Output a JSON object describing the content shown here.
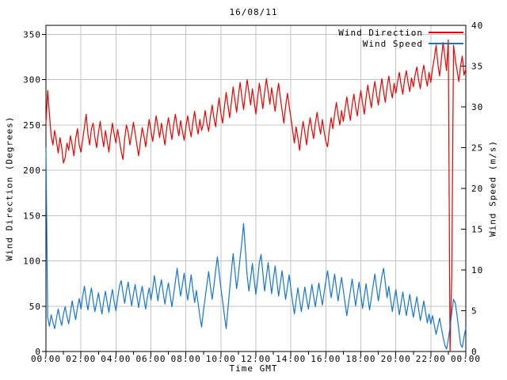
{
  "title": "16/08/11",
  "colors": {
    "background": "#ffffff",
    "grid": "#c4c4c4",
    "frame": "#000000",
    "wind_direction": "#e60000",
    "wind_speed": "#1874cd"
  },
  "axes": {
    "x_label": "Time GMT",
    "y_left_label": "Wind Direction (Degrees)",
    "y_right_label": "Wind Speed (m/s)",
    "x_tick_hours": [
      0,
      2,
      4,
      6,
      8,
      10,
      12,
      14,
      16,
      18,
      20,
      22,
      24
    ],
    "x_tick_labels": [
      "00:00",
      "02:00",
      "04:00",
      "06:00",
      "08:00",
      "10:00",
      "12:00",
      "14:00",
      "16:00",
      "18:00",
      "20:00",
      "22:00",
      "00:00"
    ],
    "y_left_ticks": [
      0,
      50,
      100,
      150,
      200,
      250,
      300,
      350
    ],
    "y_right_ticks": [
      0,
      5,
      10,
      15,
      20,
      25,
      30,
      35,
      40
    ],
    "x_range_hours": [
      0,
      24
    ],
    "y_left_range": [
      0,
      360
    ],
    "y_right_range": [
      0,
      40
    ]
  },
  "legend": {
    "entries": [
      {
        "label": "Wind Direction",
        "color": "#e60000"
      },
      {
        "label": "Wind Speed",
        "color": "#1874cd"
      }
    ]
  },
  "chart_data": {
    "type": "line",
    "title": "16/08/11",
    "xlabel": "Time GMT",
    "ylabel_left": "Wind Direction (Degrees)",
    "ylabel_right": "Wind Speed (m/s)",
    "xlim_hours": [
      0,
      24
    ],
    "ylim_left": [
      0,
      360
    ],
    "ylim_right": [
      0,
      40
    ],
    "grid": true,
    "legend_position": "top-right-inside",
    "x_start_hour": 0.0,
    "x_step_hours": 0.1,
    "series": [
      {
        "name": "Wind Direction",
        "axis": "left",
        "units": "degrees",
        "color": "#e60000",
        "values": [
          252,
          288,
          262,
          238,
          228,
          244,
          232,
          219,
          236,
          225,
          208,
          214,
          230,
          222,
          238,
          228,
          216,
          235,
          246,
          228,
          220,
          234,
          248,
          262,
          240,
          228,
          246,
          252,
          236,
          225,
          242,
          254,
          238,
          226,
          244,
          232,
          220,
          238,
          252,
          240,
          230,
          245,
          233,
          221,
          212,
          235,
          250,
          242,
          228,
          240,
          253,
          241,
          228,
          216,
          232,
          247,
          238,
          226,
          242,
          256,
          244,
          232,
          245,
          260,
          248,
          236,
          252,
          240,
          228,
          246,
          258,
          246,
          234,
          250,
          262,
          248,
          238,
          255,
          243,
          233,
          248,
          260,
          247,
          237,
          253,
          265,
          250,
          240,
          256,
          244,
          252,
          266,
          252,
          243,
          259,
          272,
          258,
          248,
          266,
          280,
          263,
          252,
          270,
          286,
          272,
          258,
          275,
          292,
          278,
          264,
          282,
          297,
          281,
          267,
          285,
          300,
          286,
          272,
          290,
          276,
          262,
          280,
          296,
          282,
          268,
          286,
          301,
          287,
          273,
          291,
          278,
          265,
          283,
          296,
          280,
          266,
          252,
          270,
          285,
          271,
          258,
          244,
          230,
          248,
          236,
          222,
          240,
          254,
          242,
          228,
          246,
          258,
          245,
          235,
          252,
          264,
          250,
          240,
          256,
          243,
          232,
          226,
          244,
          258,
          246,
          262,
          275,
          261,
          250,
          266,
          254,
          268,
          281,
          267,
          255,
          272,
          284,
          270,
          260,
          276,
          288,
          274,
          262,
          280,
          294,
          281,
          269,
          286,
          298,
          284,
          272,
          288,
          301,
          287,
          275,
          292,
          304,
          290,
          280,
          296,
          285,
          298,
          308,
          294,
          284,
          300,
          310,
          297,
          287,
          302,
          292,
          305,
          314,
          300,
          290,
          306,
          316,
          303,
          293,
          308,
          297,
          312,
          324,
          338,
          318,
          304,
          322,
          341,
          326,
          310,
          344,
          0,
          85,
          338,
          322,
          310,
          298,
          315,
          326,
          305,
          312
        ]
      },
      {
        "name": "Wind Speed",
        "axis": "right",
        "units": "m/s",
        "color": "#1874cd",
        "values": [
          25.0,
          4.2,
          3.1,
          4.5,
          3.6,
          2.8,
          4.1,
          5.2,
          4.0,
          3.2,
          4.6,
          5.5,
          4.3,
          3.4,
          4.8,
          6.2,
          5.0,
          3.9,
          5.4,
          6.5,
          5.2,
          6.8,
          8.0,
          6.4,
          5.1,
          6.6,
          7.8,
          6.2,
          4.9,
          6.0,
          7.2,
          5.8,
          4.6,
          6.2,
          7.4,
          6.0,
          4.8,
          6.4,
          7.6,
          6.1,
          5.0,
          6.5,
          8.0,
          8.7,
          7.2,
          5.9,
          7.4,
          8.5,
          7.0,
          5.6,
          7.0,
          8.2,
          6.8,
          5.4,
          6.9,
          8.0,
          6.5,
          5.2,
          6.7,
          7.8,
          6.3,
          7.6,
          9.3,
          7.8,
          6.2,
          7.7,
          8.8,
          7.2,
          5.8,
          7.3,
          8.4,
          6.9,
          5.5,
          7.0,
          8.6,
          10.2,
          8.4,
          6.8,
          8.2,
          9.6,
          7.9,
          6.3,
          7.8,
          9.4,
          7.6,
          6.0,
          7.5,
          5.9,
          4.3,
          3.0,
          5.0,
          6.6,
          8.2,
          9.8,
          8.0,
          6.4,
          8.0,
          9.9,
          11.6,
          9.7,
          7.8,
          6.2,
          4.4,
          2.8,
          5.2,
          7.6,
          9.8,
          12.0,
          9.9,
          7.7,
          9.4,
          11.5,
          13.4,
          15.7,
          12.4,
          9.3,
          7.4,
          9.0,
          10.8,
          8.8,
          7.0,
          8.8,
          10.9,
          11.9,
          9.6,
          7.4,
          9.2,
          10.9,
          8.9,
          7.1,
          8.9,
          10.5,
          8.6,
          6.8,
          8.4,
          9.9,
          8.1,
          6.4,
          7.9,
          9.4,
          7.7,
          6.1,
          4.6,
          6.2,
          7.8,
          6.3,
          4.9,
          6.4,
          7.9,
          6.5,
          5.2,
          6.7,
          8.2,
          6.8,
          5.5,
          7.0,
          8.4,
          7.0,
          5.7,
          7.2,
          8.6,
          9.9,
          8.2,
          6.6,
          8.0,
          9.5,
          7.8,
          6.2,
          7.7,
          9.1,
          7.5,
          5.9,
          4.4,
          5.9,
          7.4,
          8.9,
          7.2,
          5.6,
          7.1,
          8.5,
          6.9,
          5.3,
          6.8,
          8.3,
          6.7,
          5.1,
          6.6,
          8.1,
          9.5,
          7.8,
          6.2,
          7.7,
          9.2,
          10.2,
          8.4,
          6.6,
          8.0,
          6.4,
          4.9,
          6.3,
          7.6,
          6.0,
          4.5,
          5.9,
          7.3,
          5.8,
          4.4,
          5.7,
          7.0,
          5.5,
          4.2,
          5.5,
          6.7,
          5.2,
          3.8,
          5.0,
          6.2,
          4.8,
          3.5,
          4.6,
          3.4,
          4.4,
          3.2,
          2.1,
          3.1,
          4.1,
          2.9,
          1.8,
          0.8,
          0.3,
          1.5,
          3.0,
          4.8,
          6.4,
          5.9,
          4.4,
          2.6,
          0.9,
          0.5,
          1.8,
          2.9
        ]
      }
    ]
  }
}
